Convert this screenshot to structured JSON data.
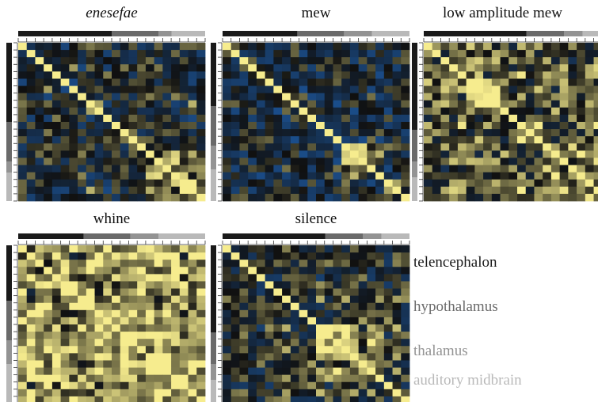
{
  "figure": {
    "palette": {
      "low": "#1d5ca8",
      "mid": "#101010",
      "high": "#f6ec8e"
    },
    "region_colors": {
      "telencephalon": "#1a1a1a",
      "hypothalamus": "#6a6a6a",
      "thalamus": "#939393",
      "auditory_midbrain": "#b9b9b9"
    },
    "legend": [
      {
        "key": "telencephalon",
        "label": "telencephalon",
        "color": "#1a1a1a"
      },
      {
        "key": "hypothalamus",
        "label": "hypothalamus",
        "color": "#6a6a6a"
      },
      {
        "key": "thalamus",
        "label": "thalamus",
        "color": "#939393"
      },
      {
        "key": "auditory_midbrain",
        "label": "auditory midbrain",
        "color": "#b9b9b9"
      }
    ]
  },
  "chart_data": [
    {
      "type": "heatmap",
      "title": "enesefae",
      "italic": true,
      "n": 22,
      "seed": 11,
      "bias": -0.05,
      "region_segments": [
        [
          "telencephalon",
          0.5
        ],
        [
          "hypothalamus",
          0.25
        ],
        [
          "thalamus",
          0.07
        ],
        [
          "auditory_midbrain",
          0.18
        ]
      ],
      "blocks": [
        {
          "from": 0.68,
          "to": 1.0,
          "strength": 0.55
        }
      ]
    },
    {
      "type": "heatmap",
      "title": "mew",
      "italic": false,
      "n": 22,
      "seed": 23,
      "bias": -0.15,
      "region_segments": [
        [
          "telencephalon",
          0.4
        ],
        [
          "hypothalamus",
          0.25
        ],
        [
          "thalamus",
          0.15
        ],
        [
          "auditory_midbrain",
          0.2
        ]
      ],
      "blocks": [
        {
          "from": 0.6,
          "to": 0.82,
          "strength": 0.45
        },
        {
          "from": 0.82,
          "to": 1.0,
          "strength": 0.35
        }
      ]
    },
    {
      "type": "heatmap",
      "title": "low amplitude mew",
      "italic": false,
      "n": 22,
      "seed": 37,
      "bias": 0.25,
      "region_segments": [
        [
          "telencephalon",
          0.55
        ],
        [
          "hypothalamus",
          0.2
        ],
        [
          "thalamus",
          0.1
        ],
        [
          "auditory_midbrain",
          0.15
        ]
      ],
      "blocks": [
        {
          "from": 0.22,
          "to": 0.42,
          "strength": 0.5
        },
        {
          "from": 0.6,
          "to": 1.0,
          "strength": 0.3
        }
      ]
    },
    {
      "type": "heatmap",
      "title": "whine",
      "italic": false,
      "n": 22,
      "seed": 41,
      "bias": 0.65,
      "region_segments": [
        [
          "telencephalon",
          0.35
        ],
        [
          "hypothalamus",
          0.25
        ],
        [
          "thalamus",
          0.15
        ],
        [
          "auditory_midbrain",
          0.25
        ]
      ],
      "blocks": []
    },
    {
      "type": "heatmap",
      "title": "silence",
      "italic": false,
      "n": 22,
      "seed": 53,
      "bias": 0.0,
      "region_segments": [
        [
          "telencephalon",
          0.55
        ],
        [
          "hypothalamus",
          0.2
        ],
        [
          "thalamus",
          0.1
        ],
        [
          "auditory_midbrain",
          0.15
        ]
      ],
      "blocks": [
        {
          "from": 0.5,
          "to": 0.85,
          "strength": 0.55
        }
      ]
    }
  ]
}
